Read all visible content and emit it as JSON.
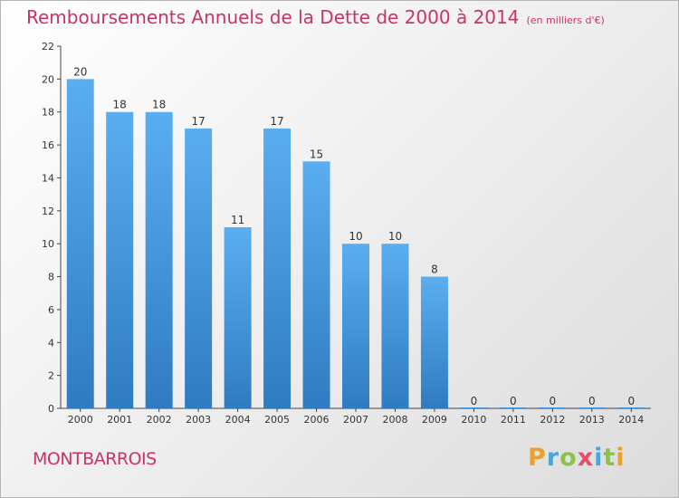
{
  "chart_data": {
    "type": "bar",
    "title": "Remboursements Annuels de la Dette de 2000 à 2014",
    "unit_note": "(en milliers d'€)",
    "categories": [
      "2000",
      "2001",
      "2002",
      "2003",
      "2004",
      "2005",
      "2006",
      "2007",
      "2008",
      "2009",
      "2010",
      "2011",
      "2012",
      "2013",
      "2014"
    ],
    "values": [
      20,
      18,
      18,
      17,
      11,
      17,
      15,
      10,
      10,
      8,
      0,
      0,
      0,
      0,
      0
    ],
    "ylim": [
      0,
      22
    ],
    "yticks": [
      0,
      2,
      4,
      6,
      8,
      10,
      12,
      14,
      16,
      18,
      20,
      22
    ],
    "grid": false,
    "bar_color": "#3f8fd8"
  },
  "footer": {
    "commune": "MONTBARROIS",
    "brand": {
      "letters": [
        {
          "char": "P",
          "color": "#e8a22d"
        },
        {
          "char": "r",
          "color": "#4aa8d8"
        },
        {
          "char": "o",
          "color": "#8bc34a"
        },
        {
          "char": "x",
          "color": "#e84c6b"
        },
        {
          "char": "i",
          "color": "#4aa8d8"
        },
        {
          "char": "t",
          "color": "#8bc34a"
        },
        {
          "char": "i",
          "color": "#e8a22d"
        }
      ]
    }
  }
}
